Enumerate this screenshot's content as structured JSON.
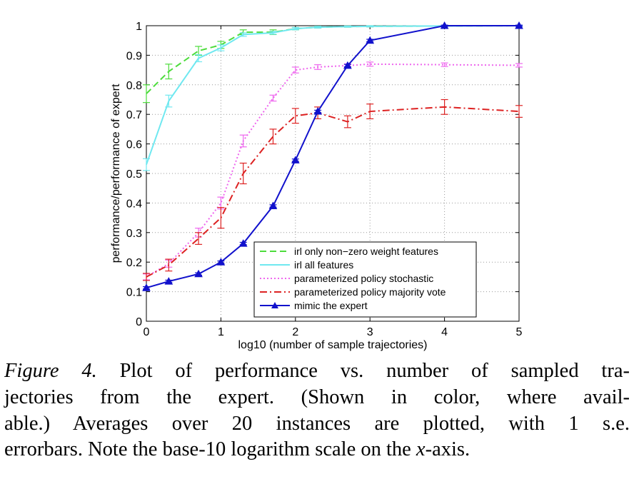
{
  "caption": {
    "label": "Figure 4.",
    "line1_rest": " Plot of performance vs.  number of sampled tra-",
    "line2": "jectories from the expert.  (Shown in color, where avail-",
    "line3": "able.)  Averages over 20 instances are plotted, with 1 s.e.",
    "line4_start": "errorbars. Note the base-10 logarithm scale on the ",
    "line4_var": "x",
    "line4_end": "-axis."
  },
  "colors": {
    "green": "#4ddc3c",
    "cyan": "#6fe8f0",
    "magenta": "#ee66ee",
    "red": "#dd2222",
    "blue": "#1111cc",
    "grid": "#999999"
  },
  "chart_data": {
    "type": "line",
    "xlabel": "log10 (number of sample trajectories)",
    "ylabel": "performance/performance of expert",
    "xlim": [
      0,
      5
    ],
    "ylim": [
      0,
      1
    ],
    "x_ticks": [
      "0",
      "1",
      "2",
      "3",
      "4",
      "5"
    ],
    "y_ticks": [
      "0",
      "0.1",
      "0.2",
      "0.3",
      "0.4",
      "0.5",
      "0.6",
      "0.7",
      "0.8",
      "0.9",
      "1"
    ],
    "grid": true,
    "legend_position": "bottom-right",
    "series": [
      {
        "name": "irl only non−zero weight features",
        "style": "dashed",
        "color": "#4ddc3c",
        "x": [
          0,
          0.3,
          0.7,
          1,
          1.3,
          1.7,
          2,
          2.3,
          2.7,
          3,
          4,
          5
        ],
        "y": [
          0.77,
          0.845,
          0.915,
          0.935,
          0.978,
          0.978,
          0.99,
          0.995,
          0.997,
          0.998,
          0.999,
          1.0
        ],
        "err": [
          0.03,
          0.025,
          0.015,
          0.012,
          0.008,
          0.008,
          0.004,
          0.003,
          0.002,
          0.002,
          0.001,
          0.001
        ]
      },
      {
        "name": "irl all features",
        "style": "solid",
        "color": "#6fe8f0",
        "x": [
          0,
          0.3,
          0.7,
          1,
          1.3,
          1.7,
          2,
          2.3,
          2.7,
          3,
          4,
          5
        ],
        "y": [
          0.53,
          0.745,
          0.89,
          0.925,
          0.97,
          0.976,
          0.99,
          0.995,
          0.997,
          0.998,
          0.999,
          1.0
        ],
        "err": [
          0.02,
          0.02,
          0.012,
          0.01,
          0.006,
          0.005,
          0.004,
          0.003,
          0.002,
          0.002,
          0.001,
          0.001
        ]
      },
      {
        "name": "parameterized policy stochastic",
        "style": "dotted",
        "color": "#ee66ee",
        "x": [
          0,
          0.3,
          0.7,
          1,
          1.3,
          1.7,
          2,
          2.3,
          2.7,
          3,
          4,
          5
        ],
        "y": [
          0.15,
          0.195,
          0.3,
          0.4,
          0.61,
          0.755,
          0.85,
          0.86,
          0.865,
          0.87,
          0.868,
          0.866
        ],
        "err": [
          0.01,
          0.012,
          0.015,
          0.02,
          0.02,
          0.01,
          0.01,
          0.008,
          0.006,
          0.007,
          0.006,
          0.006
        ]
      },
      {
        "name": "parameterized policy majority vote",
        "style": "dashdot",
        "color": "#dd2222",
        "x": [
          0,
          0.3,
          0.7,
          1,
          1.3,
          1.7,
          2,
          2.3,
          2.7,
          3,
          4,
          5
        ],
        "y": [
          0.15,
          0.19,
          0.28,
          0.35,
          0.5,
          0.625,
          0.695,
          0.705,
          0.675,
          0.71,
          0.725,
          0.71
        ],
        "err": [
          0.012,
          0.02,
          0.02,
          0.035,
          0.035,
          0.025,
          0.025,
          0.02,
          0.02,
          0.025,
          0.025,
          0.02
        ]
      },
      {
        "name": "mimic the expert",
        "style": "solid-triangle",
        "color": "#1111cc",
        "x": [
          0,
          0.3,
          0.7,
          1,
          1.3,
          1.7,
          2,
          2.3,
          2.7,
          3,
          4,
          5
        ],
        "y": [
          0.113,
          0.135,
          0.16,
          0.2,
          0.263,
          0.39,
          0.545,
          0.71,
          0.865,
          0.95,
          1.0,
          1.0
        ],
        "err": [
          0.004,
          0.004,
          0.004,
          0.004,
          0.004,
          0.004,
          0.004,
          0.004,
          0.004,
          0.004,
          0.002,
          0.002
        ]
      }
    ]
  }
}
